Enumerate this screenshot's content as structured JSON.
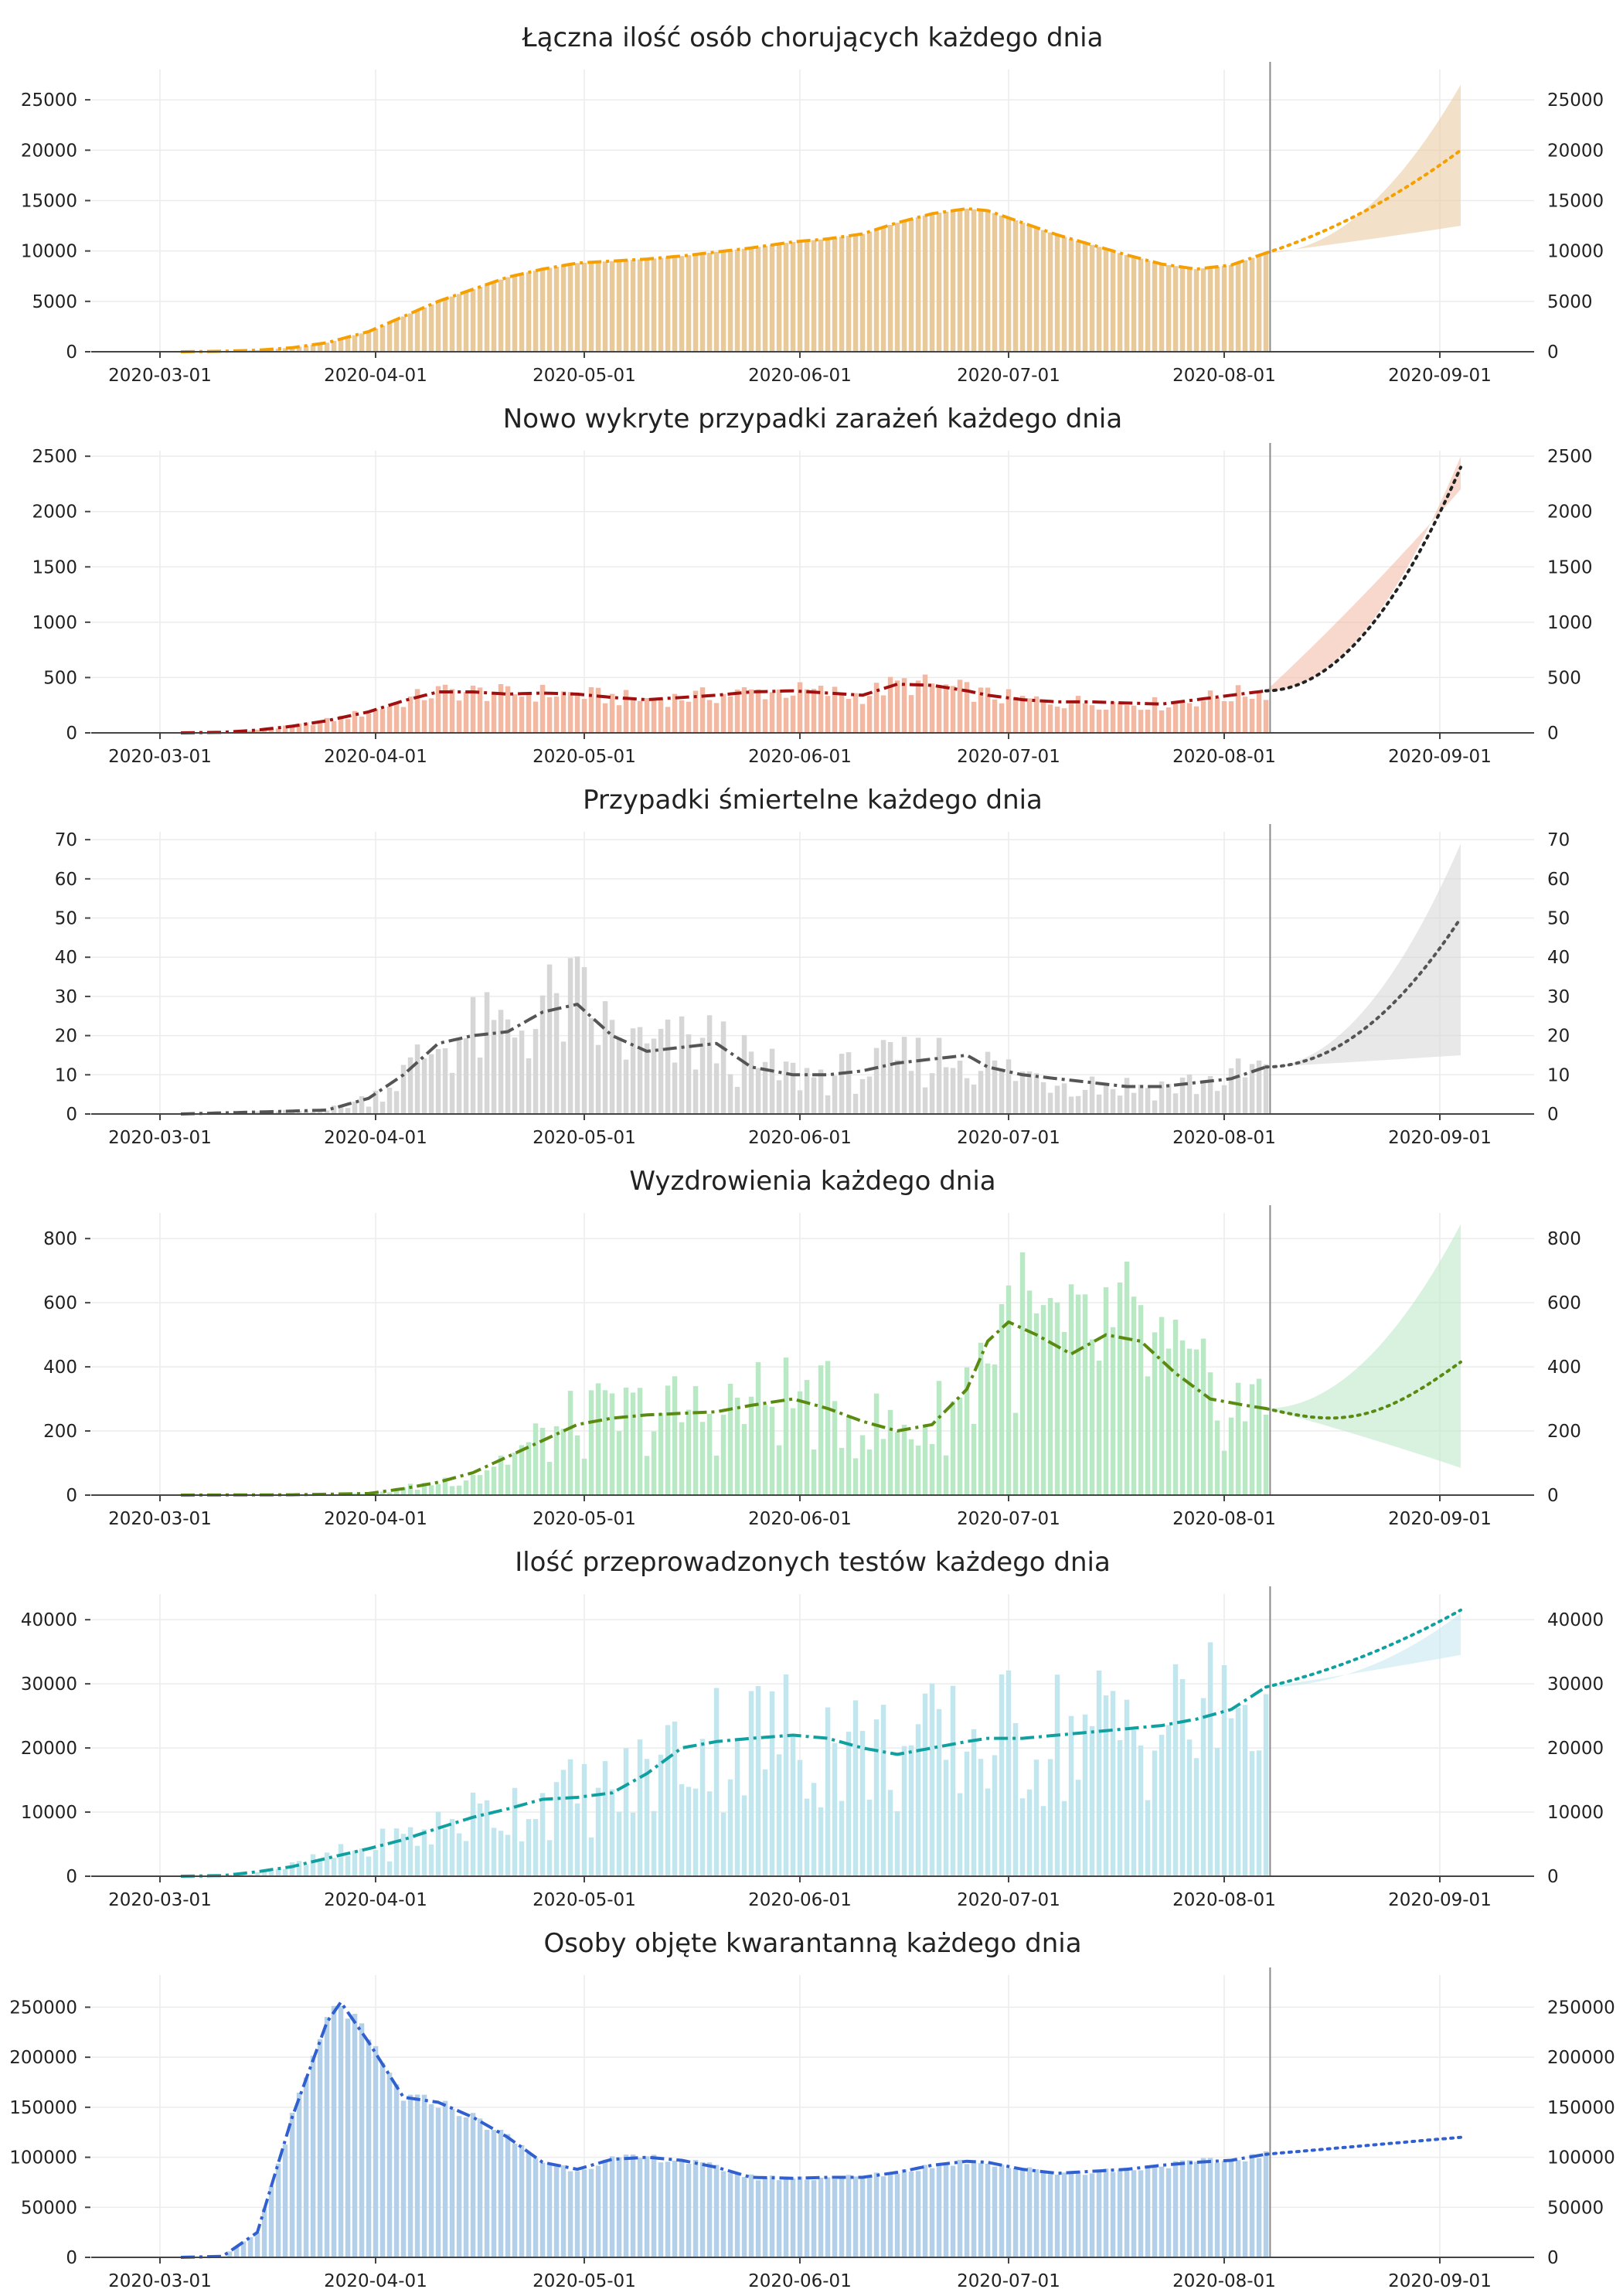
{
  "chart_data": [
    {
      "type": "bar",
      "title": "Łączna ilość osób chorujących każdego dnia",
      "xlabel": "",
      "ylabel": "",
      "x_ticks": [
        "2020-03-01",
        "2020-04-01",
        "2020-05-01",
        "2020-06-01",
        "2020-07-01",
        "2020-08-01",
        "2020-09-01"
      ],
      "y_ticks": [
        0,
        5000,
        10000,
        15000,
        20000,
        25000
      ],
      "ylim": [
        0,
        28000
      ],
      "bar_color": "#e8c99a",
      "line_color": "#f5a000",
      "forecast_start": "2020-08-07",
      "forecast_end": "2020-09-04",
      "forecast_end_value": 20000,
      "forecast_band": [
        12500,
        26500
      ],
      "series_points": [
        [
          "2020-03-04",
          0
        ],
        [
          "2020-03-10",
          50
        ],
        [
          "2020-03-15",
          150
        ],
        [
          "2020-03-20",
          400
        ],
        [
          "2020-03-25",
          900
        ],
        [
          "2020-03-31",
          2000
        ],
        [
          "2020-04-05",
          3500
        ],
        [
          "2020-04-10",
          5000
        ],
        [
          "2020-04-15",
          6200
        ],
        [
          "2020-04-20",
          7400
        ],
        [
          "2020-04-25",
          8200
        ],
        [
          "2020-04-30",
          8800
        ],
        [
          "2020-05-05",
          9000
        ],
        [
          "2020-05-10",
          9200
        ],
        [
          "2020-05-15",
          9500
        ],
        [
          "2020-05-20",
          9900
        ],
        [
          "2020-05-25",
          10300
        ],
        [
          "2020-05-31",
          10900
        ],
        [
          "2020-06-05",
          11200
        ],
        [
          "2020-06-10",
          11700
        ],
        [
          "2020-06-15",
          12800
        ],
        [
          "2020-06-20",
          13700
        ],
        [
          "2020-06-25",
          14200
        ],
        [
          "2020-06-28",
          14000
        ],
        [
          "2020-07-03",
          12800
        ],
        [
          "2020-07-08",
          11600
        ],
        [
          "2020-07-13",
          10600
        ],
        [
          "2020-07-18",
          9600
        ],
        [
          "2020-07-23",
          8700
        ],
        [
          "2020-07-28",
          8200
        ],
        [
          "2020-08-02",
          8600
        ],
        [
          "2020-08-07",
          9800
        ],
        [
          "2020-08-12",
          12000
        ]
      ]
    },
    {
      "type": "bar",
      "title": "Nowo wykryte przypadki zarażeń każdego dnia",
      "xlabel": "",
      "ylabel": "",
      "x_ticks": [
        "2020-03-01",
        "2020-04-01",
        "2020-05-01",
        "2020-06-01",
        "2020-07-01",
        "2020-08-01",
        "2020-09-01"
      ],
      "y_ticks": [
        0,
        500,
        1000,
        1500,
        2000,
        2500
      ],
      "ylim": [
        0,
        2550
      ],
      "bar_color": "#f3b8a2",
      "line_color": "#a01010",
      "forecast_start": "2020-08-07",
      "forecast_end": "2020-09-04",
      "forecast_end_value": 2400,
      "forecast_band": [
        2200,
        2500
      ],
      "series_points": [
        [
          "2020-03-04",
          0
        ],
        [
          "2020-03-10",
          5
        ],
        [
          "2020-03-15",
          25
        ],
        [
          "2020-03-20",
          60
        ],
        [
          "2020-03-25",
          110
        ],
        [
          "2020-03-31",
          190
        ],
        [
          "2020-04-05",
          290
        ],
        [
          "2020-04-10",
          370
        ],
        [
          "2020-04-15",
          370
        ],
        [
          "2020-04-20",
          350
        ],
        [
          "2020-04-25",
          360
        ],
        [
          "2020-04-30",
          350
        ],
        [
          "2020-05-05",
          320
        ],
        [
          "2020-05-10",
          300
        ],
        [
          "2020-05-15",
          320
        ],
        [
          "2020-05-20",
          340
        ],
        [
          "2020-05-25",
          370
        ],
        [
          "2020-05-31",
          380
        ],
        [
          "2020-06-05",
          360
        ],
        [
          "2020-06-10",
          340
        ],
        [
          "2020-06-15",
          440
        ],
        [
          "2020-06-20",
          430
        ],
        [
          "2020-06-25",
          380
        ],
        [
          "2020-06-28",
          340
        ],
        [
          "2020-07-03",
          300
        ],
        [
          "2020-07-08",
          280
        ],
        [
          "2020-07-13",
          280
        ],
        [
          "2020-07-18",
          270
        ],
        [
          "2020-07-23",
          260
        ],
        [
          "2020-07-28",
          300
        ],
        [
          "2020-08-02",
          340
        ],
        [
          "2020-08-07",
          380
        ],
        [
          "2020-08-12",
          560
        ],
        [
          "2020-08-17",
          660
        ],
        [
          "2020-08-21",
          790
        ]
      ]
    },
    {
      "type": "bar",
      "title": "Przypadki śmiertelne każdego dnia",
      "xlabel": "",
      "ylabel": "",
      "x_ticks": [
        "2020-03-01",
        "2020-04-01",
        "2020-05-01",
        "2020-06-01",
        "2020-07-01",
        "2020-08-01",
        "2020-09-01"
      ],
      "y_ticks": [
        0,
        10,
        20,
        30,
        40,
        50,
        60,
        70
      ],
      "ylim": [
        0,
        72
      ],
      "bar_color": "#d6d6d6",
      "line_color": "#555555",
      "forecast_start": "2020-08-07",
      "forecast_end": "2020-09-04",
      "forecast_end_value": 50,
      "forecast_band": [
        15,
        69
      ],
      "series_points": [
        [
          "2020-03-04",
          0
        ],
        [
          "2020-03-15",
          0.5
        ],
        [
          "2020-03-25",
          1
        ],
        [
          "2020-03-31",
          4
        ],
        [
          "2020-04-05",
          10
        ],
        [
          "2020-04-10",
          18
        ],
        [
          "2020-04-15",
          20
        ],
        [
          "2020-04-20",
          21
        ],
        [
          "2020-04-25",
          26
        ],
        [
          "2020-04-30",
          28
        ],
        [
          "2020-05-05",
          20
        ],
        [
          "2020-05-10",
          16
        ],
        [
          "2020-05-15",
          17
        ],
        [
          "2020-05-20",
          18
        ],
        [
          "2020-05-25",
          12
        ],
        [
          "2020-05-31",
          10
        ],
        [
          "2020-06-05",
          10
        ],
        [
          "2020-06-10",
          11
        ],
        [
          "2020-06-15",
          13
        ],
        [
          "2020-06-20",
          14
        ],
        [
          "2020-06-25",
          15
        ],
        [
          "2020-06-28",
          12
        ],
        [
          "2020-07-03",
          10
        ],
        [
          "2020-07-08",
          9
        ],
        [
          "2020-07-13",
          8
        ],
        [
          "2020-07-18",
          7
        ],
        [
          "2020-07-23",
          7
        ],
        [
          "2020-07-28",
          8
        ],
        [
          "2020-08-02",
          9
        ],
        [
          "2020-08-07",
          12
        ]
      ]
    },
    {
      "type": "bar",
      "title": "Wyzdrowienia każdego dnia",
      "xlabel": "",
      "ylabel": "",
      "x_ticks": [
        "2020-03-01",
        "2020-04-01",
        "2020-05-01",
        "2020-06-01",
        "2020-07-01",
        "2020-08-01",
        "2020-09-01"
      ],
      "y_ticks": [
        0,
        200,
        400,
        600,
        800
      ],
      "ylim": [
        0,
        880
      ],
      "bar_color": "#b8e8c4",
      "line_color": "#5a8a10",
      "forecast_start": "2020-08-07",
      "forecast_end": "2020-09-04",
      "forecast_end_value": 415,
      "forecast_band": [
        85,
        845
      ],
      "series_points": [
        [
          "2020-03-04",
          0
        ],
        [
          "2020-03-20",
          1
        ],
        [
          "2020-03-31",
          5
        ],
        [
          "2020-04-05",
          20
        ],
        [
          "2020-04-10",
          40
        ],
        [
          "2020-04-15",
          70
        ],
        [
          "2020-04-20",
          120
        ],
        [
          "2020-04-25",
          170
        ],
        [
          "2020-04-30",
          220
        ],
        [
          "2020-05-05",
          240
        ],
        [
          "2020-05-10",
          250
        ],
        [
          "2020-05-15",
          255
        ],
        [
          "2020-05-20",
          260
        ],
        [
          "2020-05-25",
          280
        ],
        [
          "2020-05-31",
          300
        ],
        [
          "2020-06-05",
          270
        ],
        [
          "2020-06-10",
          230
        ],
        [
          "2020-06-15",
          200
        ],
        [
          "2020-06-20",
          220
        ],
        [
          "2020-06-25",
          330
        ],
        [
          "2020-06-28",
          480
        ],
        [
          "2020-07-01",
          540
        ],
        [
          "2020-07-05",
          500
        ],
        [
          "2020-07-10",
          440
        ],
        [
          "2020-07-15",
          500
        ],
        [
          "2020-07-20",
          480
        ],
        [
          "2020-07-25",
          380
        ],
        [
          "2020-07-30",
          300
        ],
        [
          "2020-08-04",
          280
        ],
        [
          "2020-08-07",
          270
        ]
      ]
    },
    {
      "type": "bar",
      "title": "Ilość przeprowadzonych testów każdego dnia",
      "xlabel": "",
      "ylabel": "",
      "x_ticks": [
        "2020-03-01",
        "2020-04-01",
        "2020-05-01",
        "2020-06-01",
        "2020-07-01",
        "2020-08-01",
        "2020-09-01"
      ],
      "y_ticks": [
        0,
        10000,
        20000,
        30000,
        40000
      ],
      "ylim": [
        0,
        44000
      ],
      "bar_color": "#c2e6ee",
      "line_color": "#10a0a0",
      "forecast_start": "2020-08-07",
      "forecast_end": "2020-09-04",
      "forecast_end_value": 41500,
      "forecast_band": [
        34500,
        41000
      ],
      "series_points": [
        [
          "2020-03-04",
          0
        ],
        [
          "2020-03-10",
          100
        ],
        [
          "2020-03-15",
          700
        ],
        [
          "2020-03-20",
          1500
        ],
        [
          "2020-03-25",
          2800
        ],
        [
          "2020-03-31",
          4300
        ],
        [
          "2020-04-05",
          5700
        ],
        [
          "2020-04-10",
          7500
        ],
        [
          "2020-04-15",
          9200
        ],
        [
          "2020-04-20",
          10500
        ],
        [
          "2020-04-25",
          12000
        ],
        [
          "2020-04-30",
          12300
        ],
        [
          "2020-05-05",
          13000
        ],
        [
          "2020-05-10",
          16000
        ],
        [
          "2020-05-15",
          20000
        ],
        [
          "2020-05-20",
          21000
        ],
        [
          "2020-05-25",
          21500
        ],
        [
          "2020-05-31",
          22000
        ],
        [
          "2020-06-05",
          21500
        ],
        [
          "2020-06-10",
          20000
        ],
        [
          "2020-06-15",
          19000
        ],
        [
          "2020-06-20",
          20000
        ],
        [
          "2020-06-25",
          21000
        ],
        [
          "2020-06-28",
          21500
        ],
        [
          "2020-07-03",
          21500
        ],
        [
          "2020-07-08",
          22000
        ],
        [
          "2020-07-13",
          22500
        ],
        [
          "2020-07-18",
          23000
        ],
        [
          "2020-07-23",
          23500
        ],
        [
          "2020-07-28",
          24500
        ],
        [
          "2020-08-02",
          26000
        ],
        [
          "2020-08-07",
          29500
        ]
      ]
    },
    {
      "type": "bar",
      "title": "Osoby objęte kwarantanną każdego dnia",
      "xlabel": "",
      "ylabel": "",
      "x_ticks": [
        "2020-03-01",
        "2020-04-01",
        "2020-05-01",
        "2020-06-01",
        "2020-07-01",
        "2020-08-01",
        "2020-09-01"
      ],
      "y_ticks": [
        0,
        50000,
        100000,
        150000,
        200000,
        250000
      ],
      "ylim": [
        0,
        282000
      ],
      "bar_color": "#b4d0e8",
      "line_color": "#3060d0",
      "forecast_start": "2020-08-07",
      "forecast_end": "2020-09-04",
      "forecast_end_value": 120000,
      "forecast_band": [
        0,
        0
      ],
      "series_points": [
        [
          "2020-03-04",
          0
        ],
        [
          "2020-03-10",
          1000
        ],
        [
          "2020-03-15",
          25000
        ],
        [
          "2020-03-20",
          140000
        ],
        [
          "2020-03-25",
          235000
        ],
        [
          "2020-03-27",
          255000
        ],
        [
          "2020-03-31",
          215000
        ],
        [
          "2020-04-05",
          160000
        ],
        [
          "2020-04-10",
          155000
        ],
        [
          "2020-04-15",
          140000
        ],
        [
          "2020-04-20",
          120000
        ],
        [
          "2020-04-25",
          95000
        ],
        [
          "2020-04-30",
          88000
        ],
        [
          "2020-05-05",
          98000
        ],
        [
          "2020-05-10",
          100000
        ],
        [
          "2020-05-15",
          97000
        ],
        [
          "2020-05-20",
          90000
        ],
        [
          "2020-05-25",
          80000
        ],
        [
          "2020-05-31",
          79000
        ],
        [
          "2020-06-05",
          80000
        ],
        [
          "2020-06-10",
          80000
        ],
        [
          "2020-06-15",
          85000
        ],
        [
          "2020-06-20",
          92000
        ],
        [
          "2020-06-25",
          96000
        ],
        [
          "2020-06-28",
          95000
        ],
        [
          "2020-07-03",
          88000
        ],
        [
          "2020-07-08",
          84000
        ],
        [
          "2020-07-13",
          86000
        ],
        [
          "2020-07-18",
          88000
        ],
        [
          "2020-07-23",
          92000
        ],
        [
          "2020-07-28",
          95000
        ],
        [
          "2020-08-02",
          97000
        ],
        [
          "2020-08-07",
          103000
        ]
      ]
    }
  ]
}
